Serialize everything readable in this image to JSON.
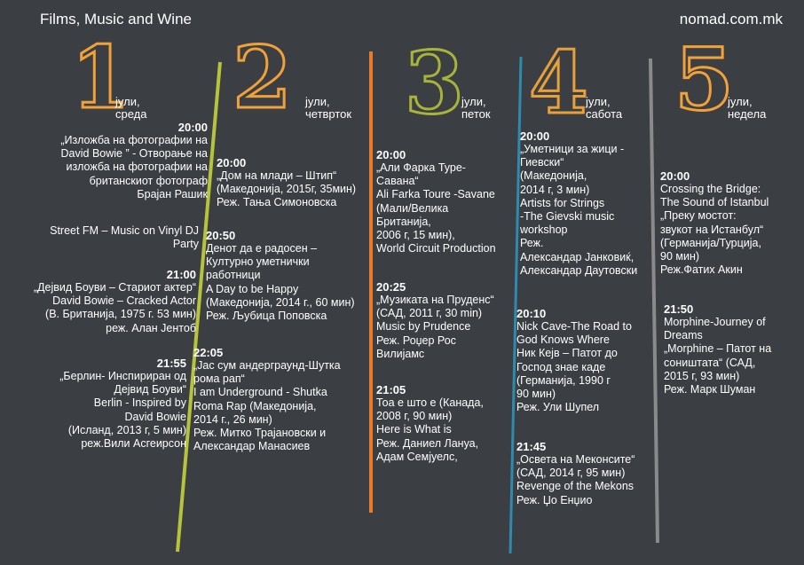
{
  "header": {
    "title": "Films, Music and Wine",
    "site": "nomad.com.mk"
  },
  "colors": {
    "day1": "#f0a13a",
    "day2": "#f0a13a",
    "day3": "#a8b33a",
    "day4": "#e8a03a",
    "day5": "#f0a13a",
    "line1": "#b5c43a",
    "line2": "#e87a2a",
    "line3": "#2f8ab0",
    "line4": "#8a8a8a"
  },
  "days": [
    {
      "num": "1",
      "label": "јули,\nсреда",
      "events": [
        {
          "time": "20:00",
          "text": "„Изложба на фотографии на\nDavid Bowie ” - Отворање на\nизложба на фотографии на\nбританскиот фотограф\nБрајан Рашик"
        },
        {
          "time": "",
          "text": "Street FM – Music on Vinyl DJ\nParty"
        },
        {
          "time": "21:00",
          "text": "„Дејвид Боуви – Стариот актер“\nDavid Bowie – Cracked Actor\n(В. Британија, 1975 г. 53 мин)\nреж. Алан Јентоб"
        },
        {
          "time": "21:55",
          "text": "„Берлин- Инспириран од\nДејвид Боуви“\nBerlin - Inspired by\nDavid Bowie\n(Исланд, 2013 г, 5 мин)\nреж.Вили Асгеирсон"
        }
      ]
    },
    {
      "num": "2",
      "label": "јули,\nчетврток",
      "events": [
        {
          "time": "20:00",
          "text": "„Дом на млади – Штип“\n(Македонија, 2015г, 35мин)\nРеж. Тања Симоновска"
        },
        {
          "time": "20:50",
          "text": "Денот да е радосен –\nКултурно уметнички\nработници\nA Day to be Happy\n(Македонија, 2014 г., 60 мин)\nРеж. Љубица Поповска"
        },
        {
          "time": "22:05",
          "text": "„Јас сум андерграунд-Шутка\nрома рап“\nI am Underground - Shutka\nRoma Rap (Македонија,\n2014 г., 26 мин)\nРеж. Митко Трајановски и\nАлександар Манасиев"
        }
      ]
    },
    {
      "num": "3",
      "label": "јули,\nпеток",
      "events": [
        {
          "time": "20:00",
          "text": "„Али Фарка Туре-\nСавана“\nAli Farka Toure -Savane\n(Мали/Велика\nБританија,\n2006 г, 15 мин),\nWorld Circuit Production"
        },
        {
          "time": "20:25",
          "text": "„Музиката на Пруденс“\n(САД, 2011 г, 30 min)\nMusic by Prudence\nРеж. Роџер Рос\nВилијамс"
        },
        {
          "time": "21:05",
          "text": "Тоа е што е (Канада,\n2008 г, 90 мин)\nHere is What is\nРеж. Даниел Лануа,\nАдам Семјуелс,"
        }
      ]
    },
    {
      "num": "4",
      "label": "јули,\nсабота",
      "events": [
        {
          "time": "20:00",
          "text": "„Уметници за жици -\nГиевски“\n(Македонија,\n2014 г, 3 мин)\nArtists for Strings\n-The Gievski music\nworkshop\nРеж.\nАлександар Јанковиќ,\nАлександар Даутовски"
        },
        {
          "time": "20:10",
          "text": "Nick Cave-The Road to\nGod Knows Where\nНик Кејв – Патот до\nГоспод знае каде\n(Германија, 1990 г\n90 мин)\nРеж. Ули Шупел"
        },
        {
          "time": "21:45",
          "text": "„Освета на Меконсите“\n(САД, 2014 г, 95 мин)\nRevenge of the Mekons\nРеж. Џо Енџио"
        }
      ]
    },
    {
      "num": "5",
      "label": "јули,\nнедела",
      "events": [
        {
          "time": "20:00",
          "text": "Crossing the Bridge:\nThe Sound of Istanbul\n„Преку мостот:\nзвукот на Истанбул“\n(Германија/Турција,\n90 мин)\nРеж.Фатих Акин"
        },
        {
          "time": "21:50",
          "text": "Morphine-Journey of\nDreams\n„Morphine – Патот на\nсоништата“ (САД,\n2015 г, 93 мин)\nРеж. Марк Шуман"
        }
      ]
    }
  ]
}
